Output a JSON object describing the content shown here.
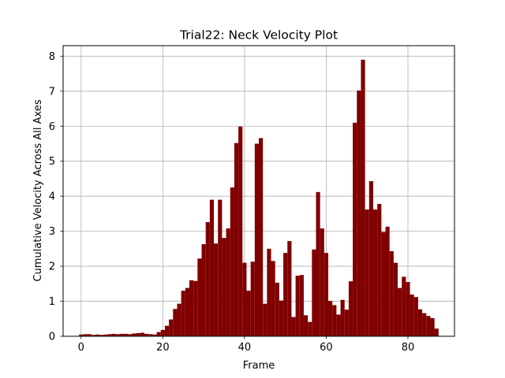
{
  "chart_data": {
    "type": "bar",
    "title": "Trial22: Neck Velocity Plot",
    "xlabel": "Frame",
    "ylabel": "Cumulative Velocity Across All Axes",
    "xlim": [
      -4.4,
      91.4
    ],
    "ylim": [
      0,
      8.3
    ],
    "xticks": [
      0,
      20,
      40,
      60,
      80
    ],
    "yticks": [
      0,
      1,
      2,
      3,
      4,
      5,
      6,
      7,
      8
    ],
    "grid": true,
    "bar_color": "#800000",
    "x": [
      0,
      1,
      2,
      3,
      4,
      5,
      6,
      7,
      8,
      9,
      10,
      11,
      12,
      13,
      14,
      15,
      16,
      17,
      18,
      19,
      20,
      21,
      22,
      23,
      24,
      25,
      26,
      27,
      28,
      29,
      30,
      31,
      32,
      33,
      34,
      35,
      36,
      37,
      38,
      39,
      40,
      41,
      42,
      43,
      44,
      45,
      46,
      47,
      48,
      49,
      50,
      51,
      52,
      53,
      54,
      55,
      56,
      57,
      58,
      59,
      60,
      61,
      62,
      63,
      64,
      65,
      66,
      67,
      68,
      69,
      70,
      71,
      72,
      73,
      74,
      75,
      76,
      77,
      78,
      79,
      80,
      81,
      82,
      83,
      84,
      85,
      86,
      87
    ],
    "values": [
      0.05,
      0.06,
      0.06,
      0.04,
      0.05,
      0.04,
      0.05,
      0.06,
      0.07,
      0.06,
      0.07,
      0.07,
      0.06,
      0.08,
      0.09,
      0.1,
      0.07,
      0.06,
      0.05,
      0.12,
      0.18,
      0.3,
      0.48,
      0.78,
      0.93,
      1.3,
      1.38,
      1.6,
      1.58,
      2.22,
      2.63,
      3.26,
      3.9,
      2.65,
      3.9,
      2.81,
      3.08,
      4.25,
      5.52,
      5.99,
      2.1,
      1.3,
      2.13,
      5.5,
      5.66,
      0.93,
      2.5,
      2.15,
      1.53,
      1.02,
      2.38,
      2.72,
      0.55,
      1.73,
      1.75,
      0.6,
      0.41,
      2.48,
      4.12,
      3.08,
      2.38,
      1.01,
      0.89,
      0.62,
      1.04,
      0.76,
      1.57,
      6.1,
      7.02,
      7.9,
      3.62,
      4.43,
      3.62,
      3.78,
      2.98,
      3.13,
      2.43,
      2.1,
      1.38,
      1.7,
      1.55,
      1.19,
      1.12,
      0.77,
      0.66,
      0.58,
      0.52,
      0.22
    ]
  }
}
